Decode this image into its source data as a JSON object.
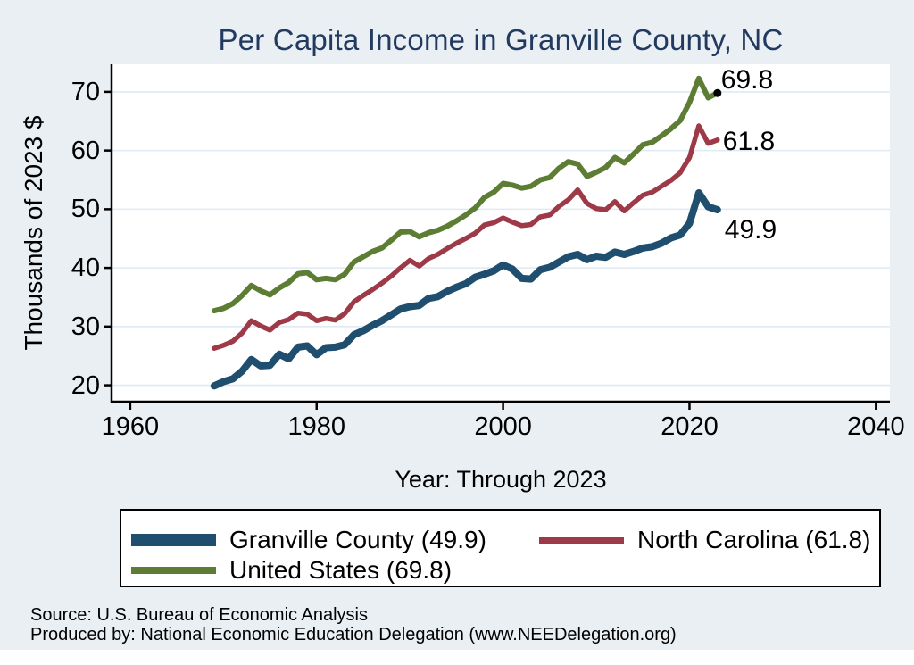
{
  "chart_data": {
    "type": "line",
    "title": "Per Capita Income in Granville County, NC",
    "xlabel": "Year: Through 2023",
    "ylabel": "Thousands of 2023 $",
    "x_ticks": [
      1960,
      1980,
      2000,
      2020,
      2040
    ],
    "y_ticks": [
      20,
      30,
      40,
      50,
      60,
      70
    ],
    "xlim": [
      1958,
      2041.5
    ],
    "ylim": [
      17.2,
      74.7
    ],
    "grid": "horizontal-only",
    "gridline_color": "#dfeaf2",
    "background_color": "#e9eff3",
    "plot_background_color": "#ffffff",
    "title_color": "#233a60",
    "legend_position": "bottom",
    "x": [
      1969,
      1970,
      1971,
      1972,
      1973,
      1974,
      1975,
      1976,
      1977,
      1978,
      1979,
      1980,
      1981,
      1982,
      1983,
      1984,
      1985,
      1986,
      1987,
      1988,
      1989,
      1990,
      1991,
      1992,
      1993,
      1994,
      1995,
      1996,
      1997,
      1998,
      1999,
      2000,
      2001,
      2002,
      2003,
      2004,
      2005,
      2006,
      2007,
      2008,
      2009,
      2010,
      2011,
      2012,
      2013,
      2014,
      2015,
      2016,
      2017,
      2018,
      2019,
      2020,
      2021,
      2022,
      2023
    ],
    "series": [
      {
        "name": "Granville County",
        "legend_label": "Granville County (49.9)",
        "color": "#1f4e6e",
        "line_width": 8,
        "swatch_height": 14,
        "end_label": "49.9",
        "end_marker": false,
        "values": [
          19.9,
          20.6,
          21.1,
          22.4,
          24.4,
          23.3,
          23.4,
          25.3,
          24.5,
          26.5,
          26.7,
          25.2,
          26.4,
          26.5,
          26.9,
          28.6,
          29.3,
          30.2,
          31.0,
          32.0,
          33.0,
          33.4,
          33.6,
          34.8,
          35.1,
          36.0,
          36.7,
          37.3,
          38.4,
          38.9,
          39.5,
          40.5,
          39.8,
          38.2,
          38.1,
          39.7,
          40.1,
          41.0,
          41.9,
          42.3,
          41.4,
          42.0,
          41.8,
          42.7,
          42.3,
          42.8,
          43.4,
          43.6,
          44.2,
          45.1,
          45.6,
          47.6,
          52.8,
          50.4,
          49.9
        ]
      },
      {
        "name": "North Carolina",
        "legend_label": "North Carolina (61.8)",
        "color": "#9e3a47",
        "line_width": 5.5,
        "swatch_height": 7,
        "end_label": "61.8",
        "end_marker": false,
        "values": [
          26.3,
          26.8,
          27.5,
          28.9,
          31.0,
          30.1,
          29.4,
          30.7,
          31.2,
          32.3,
          32.1,
          31.0,
          31.4,
          31.1,
          32.2,
          34.2,
          35.3,
          36.3,
          37.4,
          38.6,
          40.0,
          41.3,
          40.3,
          41.6,
          42.3,
          43.3,
          44.2,
          45.0,
          45.9,
          47.3,
          47.7,
          48.5,
          47.8,
          47.2,
          47.4,
          48.7,
          49.0,
          50.5,
          51.6,
          53.3,
          51.0,
          50.1,
          49.9,
          51.3,
          49.7,
          51.1,
          52.4,
          52.9,
          53.9,
          54.9,
          56.2,
          58.8,
          64.2,
          61.2,
          61.8
        ]
      },
      {
        "name": "United States",
        "legend_label": "United States (69.8)",
        "color": "#5d7d35",
        "line_width": 6,
        "swatch_height": 8,
        "end_label": "69.8",
        "end_marker": true,
        "values": [
          32.7,
          33.1,
          33.9,
          35.3,
          37.0,
          36.1,
          35.4,
          36.6,
          37.5,
          39.0,
          39.2,
          38.0,
          38.2,
          38.0,
          38.9,
          41.0,
          41.9,
          42.8,
          43.4,
          44.7,
          46.1,
          46.2,
          45.3,
          46.0,
          46.4,
          47.1,
          48.0,
          49.0,
          50.2,
          52.0,
          52.9,
          54.4,
          54.1,
          53.6,
          53.9,
          55.0,
          55.4,
          57.0,
          58.1,
          57.7,
          55.6,
          56.3,
          57.1,
          58.8,
          57.9,
          59.4,
          61.0,
          61.4,
          62.5,
          63.7,
          65.1,
          68.2,
          72.3,
          69.0,
          69.8
        ]
      }
    ]
  },
  "notes": {
    "source": "Source: U.S. Bureau of Economic Analysis",
    "produced_by": "Produced by: National Economic Education Delegation (www.NEEDelegation.org)"
  }
}
